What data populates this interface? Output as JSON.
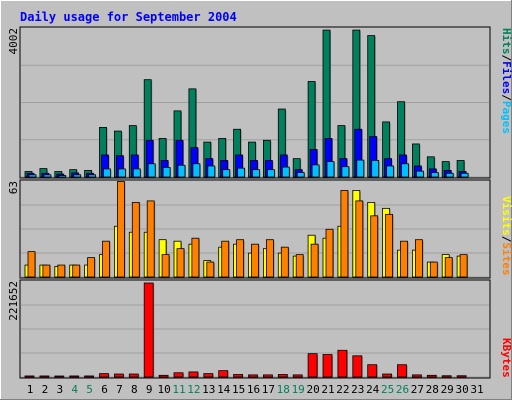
{
  "title": "Daily usage for September 2004",
  "colors": {
    "background": "#c0c0c0",
    "title_text": "#0000ff",
    "hits": "#00805c",
    "files": "#0000ff",
    "pages": "#00c0ff",
    "visits": "#ffff00",
    "sites": "#ff8000",
    "kbytes": "#ff0000",
    "weekend_day": "#00805c",
    "weekday_day": "#000000"
  },
  "legend": {
    "pages": "Pages",
    "files": "Files",
    "hits": "Hits",
    "visits": "Visits",
    "sites": "Sites",
    "kbytes": "KBytes",
    "sep": "/"
  },
  "chart_data": {
    "type": "bar",
    "title": "Daily usage for September 2004",
    "categories": [
      "1",
      "2",
      "3",
      "4",
      "5",
      "6",
      "7",
      "8",
      "9",
      "10",
      "11",
      "12",
      "13",
      "14",
      "15",
      "16",
      "17",
      "18",
      "19",
      "20",
      "21",
      "22",
      "23",
      "24",
      "25",
      "26",
      "27",
      "28",
      "29",
      "30",
      "31"
    ],
    "weekend_days": [
      "4",
      "5",
      "11",
      "12",
      "18",
      "19",
      "25",
      "26"
    ],
    "panels": [
      {
        "name": "hits-files-pages",
        "ymax_label": "4002",
        "ymax": 4002,
        "series": [
          {
            "name": "Hits",
            "color": "#00805c",
            "values": [
              150,
              230,
              150,
              200,
              180,
              1350,
              1250,
              1400,
              2650,
              1050,
              1800,
              2400,
              950,
              1050,
              1300,
              950,
              1000,
              1850,
              500,
              2600,
              4000,
              1400,
              4000,
              3850,
              1500,
              2050,
              900,
              550,
              420,
              450,
              0
            ]
          },
          {
            "name": "Files",
            "color": "#0000ff",
            "values": [
              100,
              100,
              80,
              110,
              100,
              600,
              580,
              600,
              1000,
              450,
              1000,
              800,
              500,
              450,
              600,
              450,
              450,
              600,
              200,
              750,
              1050,
              500,
              1300,
              1100,
              500,
              600,
              300,
              220,
              180,
              150,
              0
            ]
          },
          {
            "name": "Pages",
            "color": "#00c0ff",
            "values": [
              60,
              60,
              40,
              60,
              60,
              220,
              220,
              220,
              360,
              260,
              320,
              360,
              300,
              200,
              240,
              200,
              200,
              270,
              120,
              330,
              420,
              280,
              460,
              450,
              300,
              360,
              160,
              120,
              100,
              100,
              0
            ]
          }
        ]
      },
      {
        "name": "visits-sites",
        "ymax_label": "63",
        "ymax": 63,
        "series": [
          {
            "name": "Visits",
            "color": "#ffff00",
            "values": [
              8,
              8,
              7,
              8,
              8,
              15,
              34,
              30,
              30,
              25,
              24,
              22,
              11,
              20,
              22,
              16,
              19,
              16,
              14,
              28,
              26,
              34,
              58,
              50,
              46,
              18,
              18,
              10,
              15,
              14,
              0
            ]
          },
          {
            "name": "Sites",
            "color": "#ff8000",
            "values": [
              17,
              8,
              8,
              8,
              13,
              24,
              64,
              50,
              51,
              15,
              19,
              26,
              10,
              24,
              25,
              22,
              25,
              20,
              15,
              22,
              32,
              58,
              51,
              41,
              42,
              24,
              25,
              10,
              13,
              15,
              0
            ]
          }
        ]
      },
      {
        "name": "kbytes",
        "ymax_label": "221652",
        "ymax": 221652,
        "series": [
          {
            "name": "KBytes",
            "color": "#ff0000",
            "values": [
              2500,
              2500,
              2000,
              2500,
              2500,
              8000,
              7000,
              7000,
              221652,
              4000,
              10000,
              12000,
              8000,
              15000,
              6000,
              5000,
              5000,
              6000,
              5000,
              55000,
              53000,
              63000,
              50000,
              29000,
              7000,
              29000,
              5000,
              4000,
              3000,
              3000,
              0
            ]
          }
        ]
      }
    ]
  }
}
